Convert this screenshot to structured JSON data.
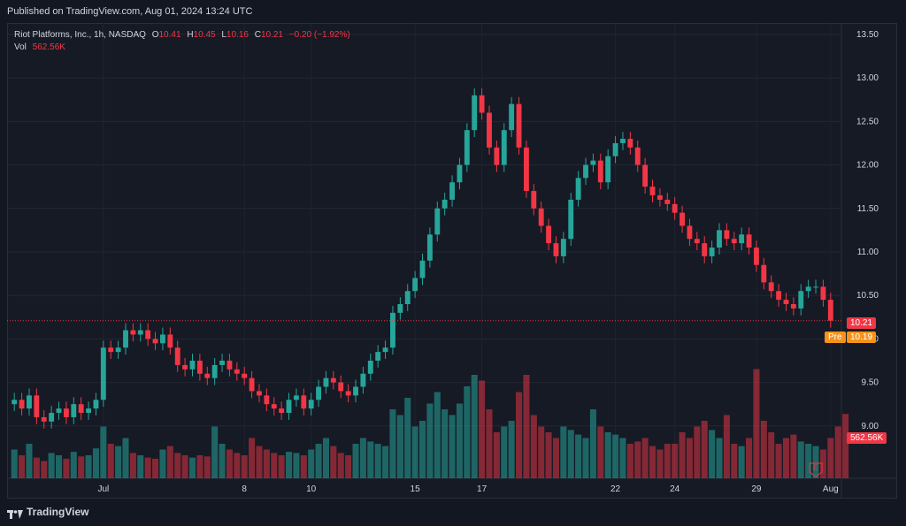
{
  "header": {
    "published": "Published on TradingView.com, Aug 01, 2024 13:24 UTC"
  },
  "legend": {
    "symbol": "Riot Platforms, Inc., 1h, NASDAQ",
    "o_label": "O",
    "o_value": "10.41",
    "h_label": "H",
    "h_value": "10.45",
    "l_label": "L",
    "l_value": "10.16",
    "c_label": "C",
    "c_value": "10.21",
    "change": "−0.20 (−1.92%)",
    "vol_label": "Vol",
    "vol_value": "562.56K"
  },
  "price_tags": {
    "last": "10.21",
    "pre_label": "Pre",
    "pre_value": "10.19",
    "volume": "562.56K"
  },
  "earnings_marker": "E",
  "footer": {
    "brand": "TradingView"
  },
  "colors": {
    "up": "#26a69a",
    "down": "#f23645",
    "background": "#131722",
    "pre": "#f7931a"
  },
  "chart_data": {
    "type": "candlestick",
    "y_ticks": [
      "13.50",
      "13.00",
      "12.50",
      "12.00",
      "11.50",
      "11.00",
      "10.50",
      "10.00",
      "9.50",
      "9.00"
    ],
    "ylim": [
      8.5,
      13.55
    ],
    "x_ticks": [
      "Jul",
      "8",
      "10",
      "15",
      "17",
      "22",
      "24",
      "29",
      "Aug"
    ],
    "last_price": 10.21,
    "premarket_price": 10.19,
    "series": [
      {
        "name": "Price",
        "values": [
          9.3,
          9.2,
          9.35,
          9.1,
          9.05,
          9.15,
          9.2,
          9.1,
          9.25,
          9.15,
          9.2,
          9.3,
          9.9,
          9.85,
          9.9,
          10.1,
          10.05,
          10.1,
          10.0,
          9.95,
          10.05,
          9.9,
          9.7,
          9.65,
          9.75,
          9.6,
          9.55,
          9.7,
          9.75,
          9.65,
          9.6,
          9.55,
          9.4,
          9.35,
          9.25,
          9.2,
          9.15,
          9.3,
          9.35,
          9.2,
          9.3,
          9.45,
          9.55,
          9.5,
          9.4,
          9.35,
          9.45,
          9.6,
          9.75,
          9.85,
          9.9,
          10.3,
          10.4,
          10.55,
          10.7,
          10.9,
          11.2,
          11.5,
          11.6,
          11.8,
          12.0,
          12.4,
          12.8,
          12.6,
          12.2,
          12.0,
          12.4,
          12.7,
          12.2,
          11.7,
          11.5,
          11.3,
          11.1,
          10.95,
          11.15,
          11.6,
          11.85,
          12.0,
          12.05,
          11.8,
          12.1,
          12.25,
          12.3,
          12.2,
          12.0,
          11.75,
          11.65,
          11.6,
          11.55,
          11.45,
          11.3,
          11.15,
          11.1,
          10.95,
          11.05,
          11.25,
          11.15,
          11.1,
          11.2,
          11.05,
          10.85,
          10.65,
          10.55,
          10.45,
          10.4,
          10.35,
          10.55,
          10.6,
          10.6,
          10.45,
          10.21
        ]
      }
    ],
    "volume_series": {
      "name": "Vol",
      "values": [
        0.25,
        0.2,
        0.3,
        0.18,
        0.15,
        0.22,
        0.2,
        0.17,
        0.23,
        0.19,
        0.2,
        0.26,
        0.45,
        0.3,
        0.28,
        0.35,
        0.22,
        0.2,
        0.18,
        0.17,
        0.25,
        0.28,
        0.22,
        0.2,
        0.18,
        0.2,
        0.19,
        0.45,
        0.3,
        0.25,
        0.22,
        0.2,
        0.35,
        0.28,
        0.25,
        0.22,
        0.2,
        0.23,
        0.22,
        0.2,
        0.25,
        0.3,
        0.35,
        0.28,
        0.22,
        0.2,
        0.3,
        0.35,
        0.32,
        0.3,
        0.28,
        0.6,
        0.55,
        0.7,
        0.45,
        0.5,
        0.65,
        0.75,
        0.6,
        0.55,
        0.65,
        0.8,
        0.9,
        0.85,
        0.6,
        0.4,
        0.45,
        0.5,
        0.75,
        0.9,
        0.55,
        0.45,
        0.4,
        0.35,
        0.45,
        0.42,
        0.38,
        0.35,
        0.6,
        0.45,
        0.4,
        0.38,
        0.35,
        0.3,
        0.32,
        0.35,
        0.28,
        0.25,
        0.3,
        0.3,
        0.4,
        0.35,
        0.45,
        0.5,
        0.42,
        0.35,
        0.55,
        0.3,
        0.28,
        0.35,
        0.95,
        0.5,
        0.4,
        0.3,
        0.35,
        0.38,
        0.32,
        0.3,
        0.28,
        0.25,
        0.35,
        0.45,
        0.56
      ]
    }
  }
}
